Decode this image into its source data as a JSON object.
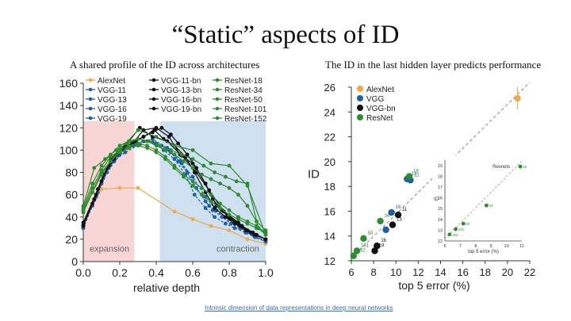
{
  "slide": {
    "title": "“Static” aspects of ID",
    "left_subtitle": "A shared profile of the ID across architectures",
    "right_subtitle": "The ID in the last hidden layer predicts performance",
    "source_link": "Intrinsic dimension of data representations in deep neural networks"
  },
  "chart_data": [
    {
      "type": "line",
      "title": "",
      "xlabel": "relative depth",
      "ylabel": "",
      "xlim": [
        0,
        1
      ],
      "ylim": [
        0,
        160
      ],
      "xticks": [
        "0.0",
        "0.2",
        "0.4",
        "0.6",
        "0.8",
        "1.0"
      ],
      "yticks": [
        "0",
        "20",
        "40",
        "60",
        "80",
        "100",
        "120",
        "140",
        "160"
      ],
      "regions": [
        {
          "label": "expansion",
          "x": [
            0,
            0.28
          ],
          "color": "#f9d6d6"
        },
        {
          "label": "contraction",
          "x": [
            0.42,
            1.0
          ],
          "color": "#cfe0f0"
        }
      ],
      "legend": [
        "AlexNet",
        "VGG-11",
        "VGG-13",
        "VGG-16",
        "VGG-19",
        "VGG-11-bn",
        "VGG-13-bn",
        "VGG-16-bn",
        "VGG-19-bn",
        "ResNet-18",
        "ResNet-34",
        "ResNet-50",
        "ResNet-101",
        "ResNet-152"
      ],
      "series": [
        {
          "name": "AlexNet",
          "color": "#f0a94a",
          "x": [
            0,
            0.1,
            0.2,
            0.3,
            0.5,
            0.6,
            0.7,
            0.8,
            0.9,
            1.0
          ],
          "y": [
            35,
            65,
            66,
            66,
            45,
            38,
            32,
            28,
            20,
            16
          ]
        },
        {
          "name": "VGG-11",
          "color": "#1f5fa8",
          "x": [
            0,
            0.08,
            0.15,
            0.23,
            0.31,
            0.38,
            0.46,
            0.54,
            0.62,
            0.69,
            0.77,
            0.85,
            0.92,
            1.0
          ],
          "y": [
            32,
            62,
            88,
            98,
            105,
            110,
            102,
            88,
            66,
            50,
            40,
            34,
            26,
            20
          ]
        },
        {
          "name": "VGG-13",
          "color": "#1f5fa8",
          "x": [
            0,
            0.07,
            0.13,
            0.2,
            0.27,
            0.33,
            0.4,
            0.47,
            0.53,
            0.6,
            0.67,
            0.73,
            0.8,
            0.87,
            0.93,
            1.0
          ],
          "y": [
            30,
            58,
            80,
            96,
            104,
            108,
            106,
            100,
            90,
            76,
            58,
            46,
            38,
            30,
            24,
            18
          ]
        },
        {
          "name": "VGG-16",
          "color": "#1f5fa8",
          "x": [
            0,
            0.06,
            0.11,
            0.17,
            0.22,
            0.28,
            0.33,
            0.39,
            0.44,
            0.5,
            0.56,
            0.61,
            0.67,
            0.72,
            0.78,
            0.83,
            0.89,
            0.94,
            1.0
          ],
          "y": [
            30,
            55,
            75,
            90,
            100,
            105,
            108,
            106,
            100,
            92,
            78,
            60,
            48,
            40,
            34,
            30,
            26,
            22,
            18
          ]
        },
        {
          "name": "VGG-19",
          "color": "#1f5fa8",
          "x": [
            0,
            0.05,
            0.1,
            0.14,
            0.19,
            0.24,
            0.29,
            0.33,
            0.38,
            0.43,
            0.48,
            0.52,
            0.57,
            0.62,
            0.67,
            0.71,
            0.76,
            0.81,
            0.86,
            0.9,
            0.95,
            1.0
          ],
          "y": [
            30,
            50,
            70,
            84,
            95,
            102,
            106,
            108,
            107,
            104,
            98,
            90,
            80,
            66,
            54,
            46,
            40,
            34,
            30,
            26,
            22,
            18
          ]
        },
        {
          "name": "VGG-11-bn",
          "color": "#111111",
          "x": [
            0,
            0.08,
            0.15,
            0.23,
            0.31,
            0.38,
            0.46,
            0.54,
            0.62,
            0.69,
            0.77,
            0.85,
            0.92,
            1.0
          ],
          "y": [
            35,
            65,
            92,
            104,
            120,
            112,
            108,
            95,
            80,
            64,
            45,
            35,
            26,
            20
          ]
        },
        {
          "name": "VGG-13-bn",
          "color": "#111111",
          "x": [
            0,
            0.07,
            0.13,
            0.2,
            0.27,
            0.33,
            0.4,
            0.47,
            0.53,
            0.6,
            0.67,
            0.73,
            0.8,
            0.87,
            0.93,
            1.0
          ],
          "y": [
            33,
            60,
            84,
            100,
            106,
            118,
            120,
            112,
            96,
            88,
            70,
            50,
            40,
            32,
            26,
            20
          ]
        },
        {
          "name": "VGG-16-bn",
          "color": "#111111",
          "x": [
            0,
            0.06,
            0.11,
            0.17,
            0.22,
            0.28,
            0.33,
            0.39,
            0.44,
            0.5,
            0.56,
            0.61,
            0.67,
            0.72,
            0.78,
            0.83,
            0.89,
            0.94,
            1.0
          ],
          "y": [
            32,
            56,
            78,
            92,
            102,
            108,
            112,
            118,
            110,
            104,
            94,
            80,
            62,
            48,
            40,
            34,
            28,
            24,
            20
          ]
        },
        {
          "name": "VGG-19-bn",
          "color": "#111111",
          "x": [
            0,
            0.05,
            0.1,
            0.14,
            0.19,
            0.24,
            0.29,
            0.33,
            0.38,
            0.43,
            0.48,
            0.52,
            0.57,
            0.62,
            0.67,
            0.71,
            0.76,
            0.81,
            0.86,
            0.9,
            0.95,
            1.0
          ],
          "y": [
            32,
            52,
            72,
            86,
            97,
            104,
            108,
            112,
            116,
            120,
            114,
            106,
            96,
            84,
            70,
            56,
            46,
            38,
            32,
            28,
            24,
            20
          ]
        },
        {
          "name": "ResNet-18",
          "color": "#2e8b2e",
          "x": [
            0,
            0.1,
            0.2,
            0.3,
            0.4,
            0.5,
            0.6,
            0.7,
            0.8,
            0.9,
            1.0
          ],
          "y": [
            45,
            80,
            100,
            118,
            112,
            104,
            100,
            88,
            86,
            68,
            24
          ]
        },
        {
          "name": "ResNet-34",
          "color": "#2e8b2e",
          "x": [
            0,
            0.06,
            0.12,
            0.18,
            0.24,
            0.3,
            0.36,
            0.42,
            0.48,
            0.54,
            0.6,
            0.66,
            0.72,
            0.78,
            0.84,
            0.9,
            0.96,
            1.0
          ],
          "y": [
            50,
            84,
            92,
            100,
            106,
            110,
            108,
            104,
            100,
            96,
            92,
            86,
            80,
            76,
            72,
            70,
            30,
            24
          ]
        },
        {
          "name": "ResNet-50",
          "color": "#2e8b2e",
          "x": [
            0,
            0.05,
            0.1,
            0.15,
            0.2,
            0.25,
            0.3,
            0.35,
            0.4,
            0.45,
            0.5,
            0.55,
            0.6,
            0.65,
            0.7,
            0.75,
            0.8,
            0.85,
            0.9,
            0.95,
            1.0
          ],
          "y": [
            48,
            70,
            86,
            96,
            104,
            108,
            110,
            108,
            104,
            100,
            96,
            90,
            84,
            78,
            74,
            70,
            66,
            60,
            50,
            36,
            28
          ]
        },
        {
          "name": "ResNet-101",
          "color": "#2e8b2e",
          "x": [
            0,
            0.05,
            0.1,
            0.15,
            0.2,
            0.25,
            0.3,
            0.35,
            0.4,
            0.45,
            0.5,
            0.55,
            0.6,
            0.65,
            0.7,
            0.75,
            0.8,
            0.85,
            0.9,
            0.95,
            1.0
          ],
          "y": [
            46,
            66,
            82,
            94,
            100,
            104,
            106,
            104,
            100,
            94,
            86,
            78,
            72,
            66,
            60,
            52,
            46,
            40,
            36,
            32,
            26
          ]
        },
        {
          "name": "ResNet-152",
          "color": "#2e8b2e",
          "x": [
            0,
            0.05,
            0.1,
            0.15,
            0.2,
            0.25,
            0.3,
            0.35,
            0.4,
            0.45,
            0.5,
            0.55,
            0.6,
            0.65,
            0.7,
            0.75,
            0.8,
            0.85,
            0.9,
            0.95,
            1.0
          ],
          "y": [
            44,
            62,
            78,
            90,
            98,
            102,
            104,
            102,
            98,
            92,
            84,
            76,
            68,
            60,
            54,
            48,
            42,
            38,
            34,
            30,
            26
          ]
        }
      ]
    },
    {
      "type": "scatter",
      "title": "",
      "xlabel": "top 5 error (%)",
      "ylabel": "ID",
      "xlim": [
        6,
        22
      ],
      "ylim": [
        12,
        26
      ],
      "xticks": [
        "6",
        "8",
        "10",
        "12",
        "14",
        "16",
        "18",
        "20",
        "22"
      ],
      "yticks": [
        "12",
        "14",
        "16",
        "18",
        "20",
        "22",
        "24",
        "26"
      ],
      "fit_line": {
        "x": [
          6,
          22
        ],
        "y": [
          12.2,
          26.4
        ]
      },
      "legend": [
        {
          "name": "AlexNet",
          "color": "#f0a94a"
        },
        {
          "name": "VGG",
          "color": "#1f5fa8"
        },
        {
          "name": "VGG-bn",
          "color": "#111111"
        },
        {
          "name": "ResNet",
          "color": "#2e8b2e"
        }
      ],
      "points": [
        {
          "group": "AlexNet",
          "x": 20.9,
          "y": 25.1,
          "label": ""
        },
        {
          "group": "VGG",
          "x": 11.0,
          "y": 18.6,
          "label": "13"
        },
        {
          "group": "VGG",
          "x": 9.6,
          "y": 15.9,
          "label": "16"
        },
        {
          "group": "VGG",
          "x": 9.1,
          "y": 14.5,
          "label": "19"
        },
        {
          "group": "VGG",
          "x": 11.3,
          "y": 18.5,
          "label": "11"
        },
        {
          "group": "VGG-bn",
          "x": 10.2,
          "y": 15.7,
          "label": "11"
        },
        {
          "group": "VGG-bn",
          "x": 9.7,
          "y": 14.9,
          "label": "13"
        },
        {
          "group": "VGG-bn",
          "x": 8.3,
          "y": 13.2,
          "label": "16"
        },
        {
          "group": "VGG-bn",
          "x": 8.1,
          "y": 12.8,
          "label": "19"
        },
        {
          "group": "ResNet",
          "x": 11.2,
          "y": 18.8,
          "label": "18"
        },
        {
          "group": "ResNet",
          "x": 8.6,
          "y": 15.2,
          "label": "34"
        },
        {
          "group": "ResNet",
          "x": 7.1,
          "y": 13.8,
          "label": "50"
        },
        {
          "group": "ResNet",
          "x": 6.5,
          "y": 12.8,
          "label": "101"
        },
        {
          "group": "ResNet",
          "x": 6.2,
          "y": 12.4,
          "label": "152"
        }
      ],
      "inset": {
        "title": "Resnets",
        "xlabel": "top 5 error (%)",
        "ylabel": "ID",
        "xticks": [
          "6",
          "7",
          "8",
          "9",
          "10",
          "11"
        ],
        "yticks": [
          "12",
          "13",
          "14",
          "15",
          "16",
          "17",
          "18",
          "19"
        ],
        "xlim": [
          6,
          11
        ],
        "ylim": [
          12,
          19.5
        ],
        "points": [
          {
            "x": 6.3,
            "y": 12.6,
            "label": "152"
          },
          {
            "x": 6.7,
            "y": 13.1,
            "label": "101"
          },
          {
            "x": 7.2,
            "y": 13.6,
            "label": "50"
          },
          {
            "x": 8.7,
            "y": 15.3,
            "label": "34"
          },
          {
            "x": 10.9,
            "y": 18.9,
            "label": "18"
          }
        ]
      }
    }
  ]
}
